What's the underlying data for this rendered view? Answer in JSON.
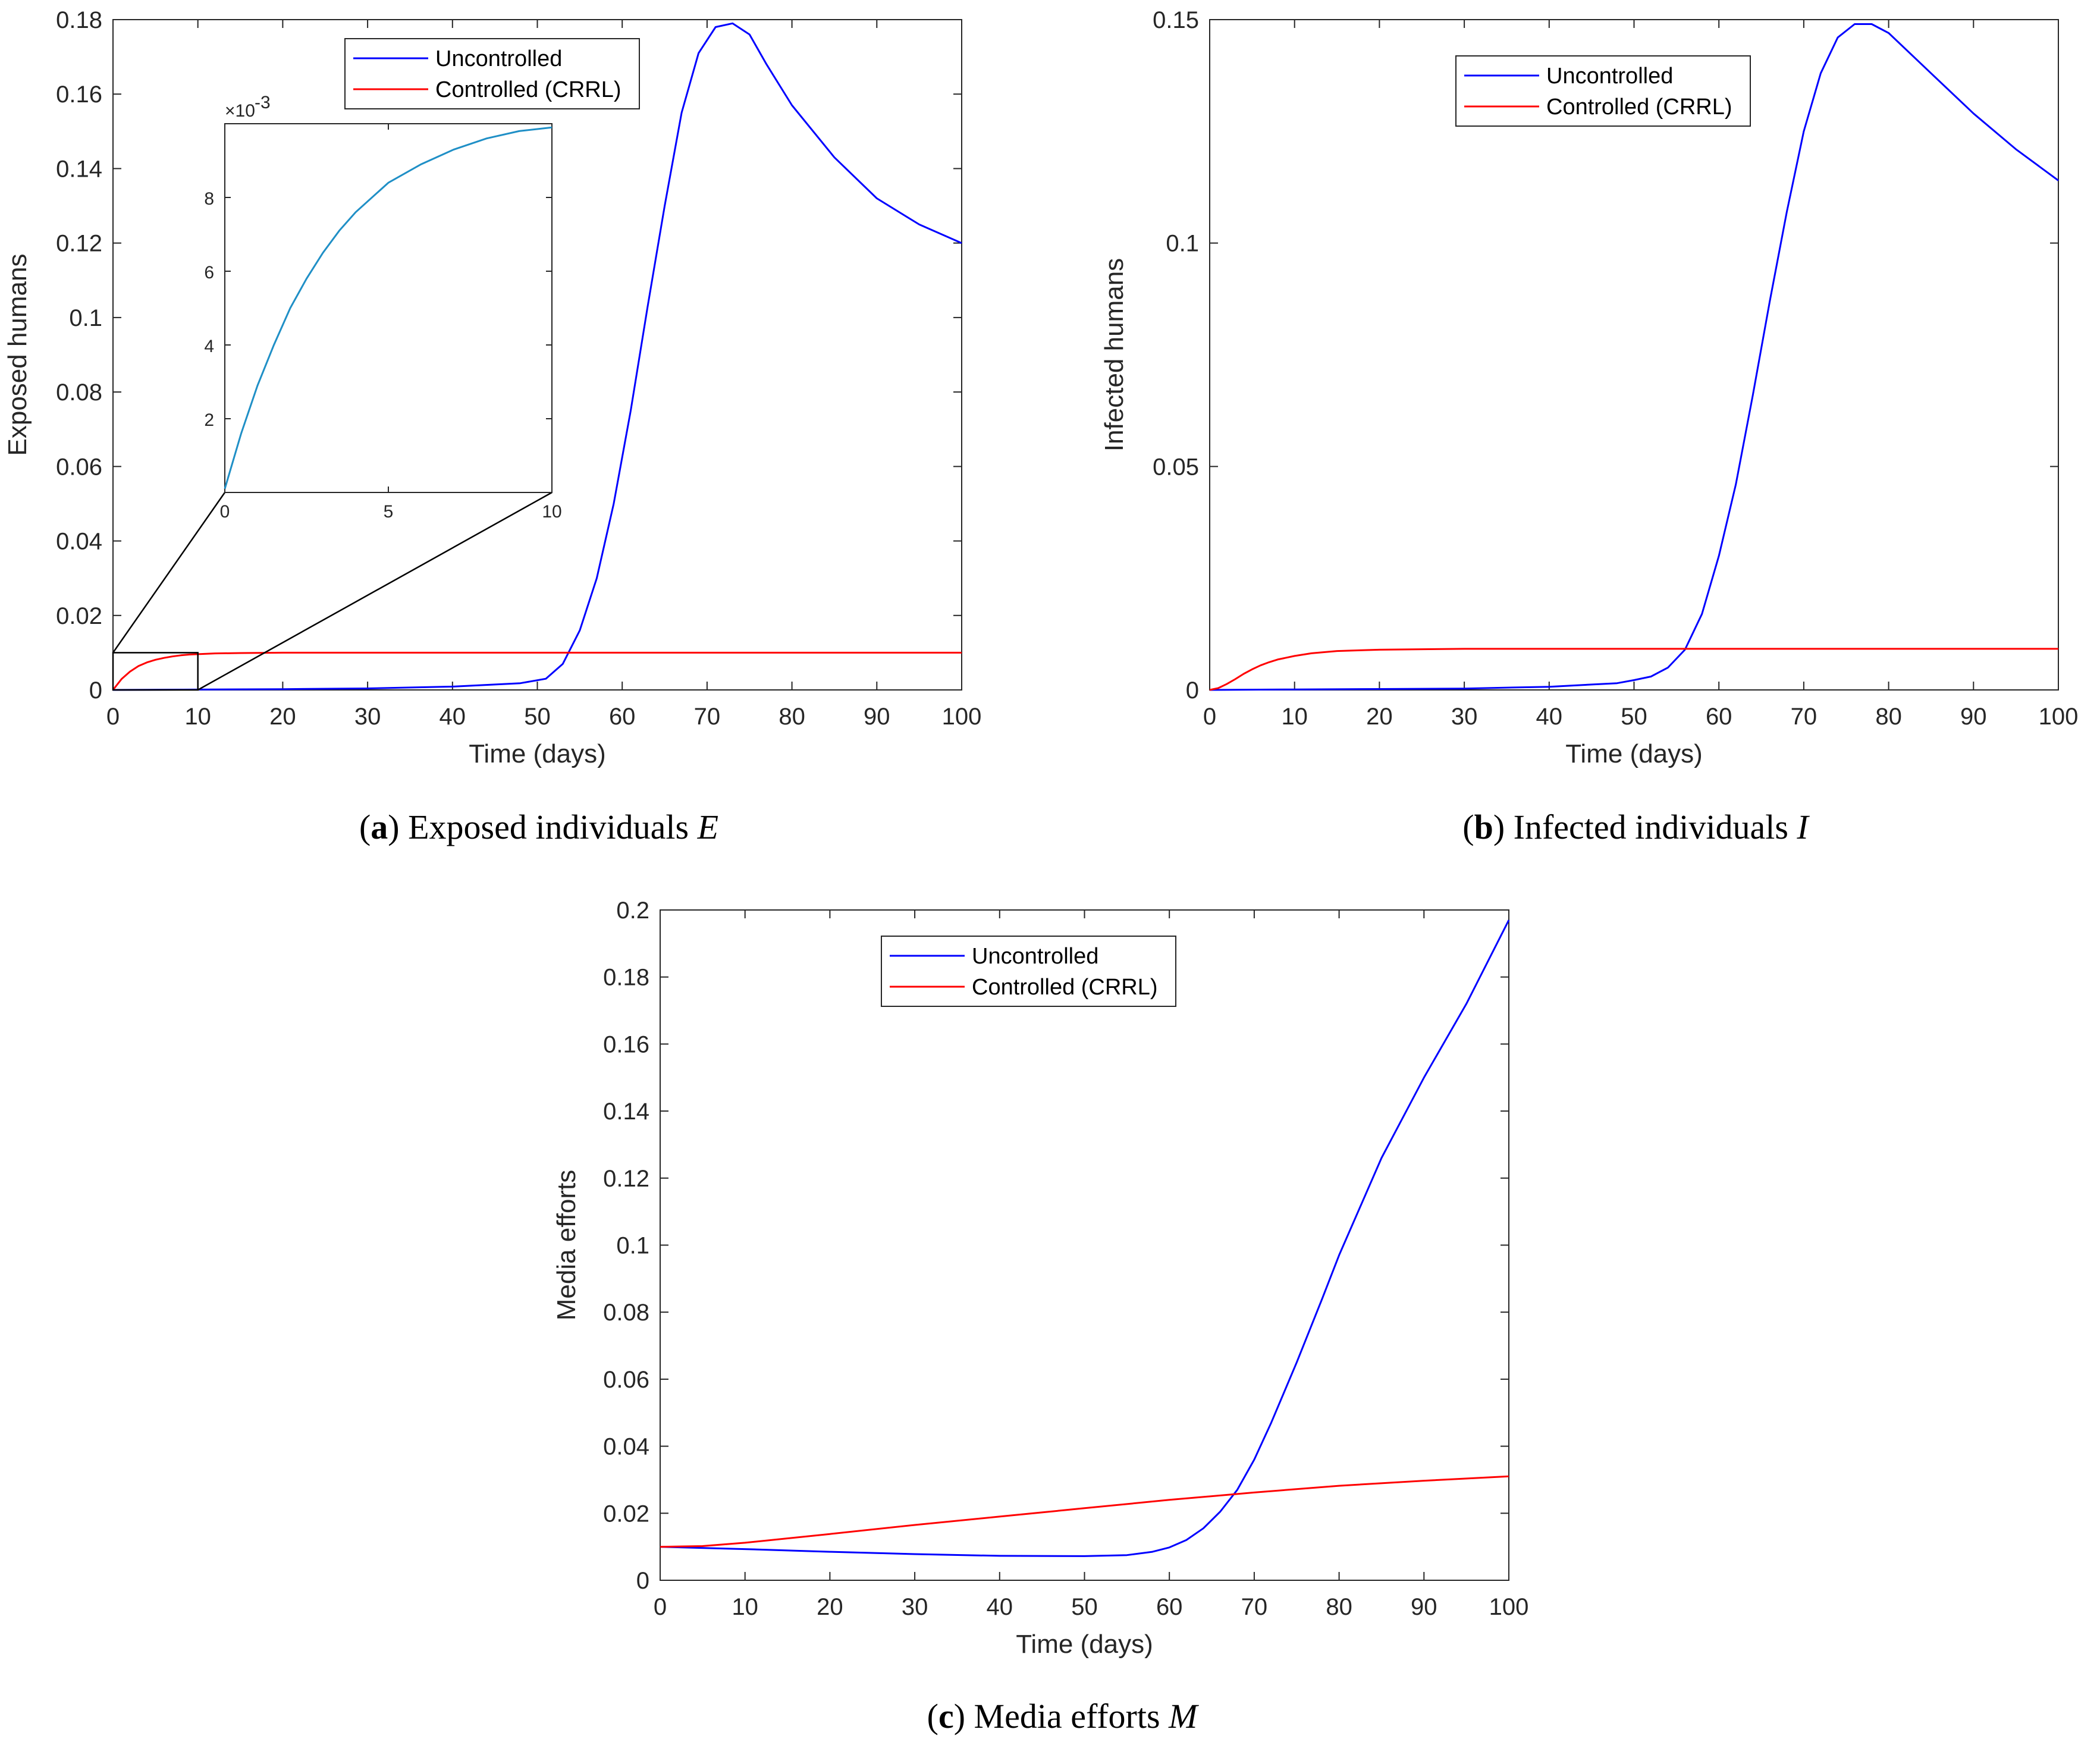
{
  "colors": {
    "uncontrolled": "#0000ff",
    "controlled": "#ff0000",
    "inset_line": "#1f8fc6",
    "axis": "#262626"
  },
  "chart_data": [
    {
      "id": "a",
      "type": "line",
      "xlabel": "Time (days)",
      "ylabel": "Exposed humans",
      "xlim": [
        0,
        100
      ],
      "ylim": [
        0,
        0.18
      ],
      "xticks": [
        0,
        10,
        20,
        30,
        40,
        50,
        60,
        70,
        80,
        90,
        100
      ],
      "xtick_labels": [
        "0",
        "10",
        "20",
        "30",
        "40",
        "50",
        "60",
        "70",
        "80",
        "90",
        "100"
      ],
      "yticks": [
        0,
        0.02,
        0.04,
        0.06,
        0.08,
        0.1,
        0.12,
        0.14,
        0.16,
        0.18
      ],
      "ytick_labels": [
        "0",
        "0.02",
        "0.04",
        "0.06",
        "0.08",
        "0.1",
        "0.12",
        "0.14",
        "0.16",
        "0.18"
      ],
      "legend": [
        "Uncontrolled",
        "Controlled (CRRL)"
      ],
      "legend_position": "top-center",
      "series": [
        {
          "name": "Uncontrolled",
          "color_key": "uncontrolled",
          "x": [
            0,
            10,
            20,
            30,
            40,
            48,
            51,
            53,
            55,
            57,
            59,
            61,
            63,
            65,
            67,
            69,
            71,
            73,
            75,
            77,
            80,
            85,
            90,
            95,
            100
          ],
          "y": [
            0,
            0.0001,
            0.0002,
            0.0004,
            0.0009,
            0.0018,
            0.003,
            0.007,
            0.016,
            0.03,
            0.05,
            0.075,
            0.103,
            0.13,
            0.155,
            0.171,
            0.178,
            0.179,
            0.176,
            0.168,
            0.157,
            0.143,
            0.132,
            0.125,
            0.12
          ]
        },
        {
          "name": "Controlled (CRRL)",
          "color_key": "controlled",
          "x": [
            0,
            1,
            2,
            3,
            4,
            5,
            6,
            7,
            8,
            9,
            10,
            12,
            15,
            20,
            30,
            50,
            100
          ],
          "y": [
            0,
            0.0029,
            0.0049,
            0.0064,
            0.0074,
            0.0081,
            0.0086,
            0.009,
            0.0093,
            0.0095,
            0.0096,
            0.0098,
            0.0099,
            0.01,
            0.01,
            0.01,
            0.01
          ]
        }
      ],
      "zoom_box": {
        "xlim": [
          0,
          10
        ],
        "ylim": [
          0,
          0.01
        ]
      },
      "inset": {
        "xlim": [
          0,
          10
        ],
        "ylim": [
          0,
          0.01
        ],
        "xticks": [
          0,
          5,
          10
        ],
        "xtick_labels": [
          "0",
          "5",
          "10"
        ],
        "yticks": [
          2,
          4,
          6,
          8
        ],
        "ytick_labels": [
          "2",
          "4",
          "6",
          "8"
        ],
        "exponent_label": "×10",
        "exponent_value": "-3",
        "series": {
          "color_key": "inset_line",
          "x": [
            0,
            0.5,
            1,
            1.5,
            2,
            2.5,
            3,
            3.5,
            4,
            5,
            6,
            7,
            8,
            9,
            10
          ],
          "y": [
            0.0001,
            0.0016,
            0.0029,
            0.004,
            0.005,
            0.0058,
            0.0065,
            0.0071,
            0.0076,
            0.0084,
            0.0089,
            0.0093,
            0.0096,
            0.0098,
            0.0099
          ]
        }
      },
      "caption": {
        "letter": "a",
        "text": "Exposed individuals",
        "var": "E"
      }
    },
    {
      "id": "b",
      "type": "line",
      "xlabel": "Time (days)",
      "ylabel": "Infected humans",
      "xlim": [
        0,
        100
      ],
      "ylim": [
        0,
        0.15
      ],
      "xticks": [
        0,
        10,
        20,
        30,
        40,
        50,
        60,
        70,
        80,
        90,
        100
      ],
      "xtick_labels": [
        "0",
        "10",
        "20",
        "30",
        "40",
        "50",
        "60",
        "70",
        "80",
        "90",
        "100"
      ],
      "yticks": [
        0,
        0.05,
        0.1,
        0.15
      ],
      "ytick_labels": [
        "0",
        "0.05",
        "0.1",
        "0.15"
      ],
      "legend": [
        "Uncontrolled",
        "Controlled (CRRL)"
      ],
      "legend_position": "top-center",
      "series": [
        {
          "name": "Uncontrolled",
          "color_key": "uncontrolled",
          "x": [
            0,
            10,
            20,
            30,
            40,
            48,
            50,
            52,
            54,
            56,
            58,
            60,
            62,
            64,
            66,
            68,
            70,
            72,
            74,
            76,
            78,
            80,
            85,
            90,
            95,
            100
          ],
          "y": [
            0,
            0.0001,
            0.0002,
            0.0003,
            0.0007,
            0.0015,
            0.0022,
            0.003,
            0.005,
            0.009,
            0.017,
            0.03,
            0.046,
            0.066,
            0.087,
            0.107,
            0.125,
            0.138,
            0.146,
            0.149,
            0.149,
            0.147,
            0.138,
            0.129,
            0.121,
            0.114
          ]
        },
        {
          "name": "Controlled (CRRL)",
          "color_key": "controlled",
          "x": [
            0,
            1,
            2,
            3,
            4,
            5,
            6,
            7,
            8,
            10,
            12,
            15,
            20,
            30,
            50,
            100
          ],
          "y": [
            0,
            0.0004,
            0.0013,
            0.0024,
            0.0036,
            0.0046,
            0.0055,
            0.0062,
            0.0068,
            0.0076,
            0.0082,
            0.0087,
            0.009,
            0.0092,
            0.0092,
            0.0092
          ]
        }
      ],
      "caption": {
        "letter": "b",
        "text": "Infected individuals",
        "var": "I"
      }
    },
    {
      "id": "c",
      "type": "line",
      "xlabel": "Time (days)",
      "ylabel": "Media efforts",
      "xlim": [
        0,
        100
      ],
      "ylim": [
        0,
        0.2
      ],
      "xticks": [
        0,
        10,
        20,
        30,
        40,
        50,
        60,
        70,
        80,
        90,
        100
      ],
      "xtick_labels": [
        "0",
        "10",
        "20",
        "30",
        "40",
        "50",
        "60",
        "70",
        "80",
        "90",
        "100"
      ],
      "yticks": [
        0,
        0.02,
        0.04,
        0.06,
        0.08,
        0.1,
        0.12,
        0.14,
        0.16,
        0.18,
        0.2
      ],
      "ytick_labels": [
        "0",
        "0.02",
        "0.04",
        "0.06",
        "0.08",
        "0.1",
        "0.12",
        "0.14",
        "0.16",
        "0.18",
        "0.2"
      ],
      "legend": [
        "Uncontrolled",
        "Controlled (CRRL)"
      ],
      "legend_position": "top-center",
      "series": [
        {
          "name": "Uncontrolled",
          "color_key": "uncontrolled",
          "x": [
            0,
            10,
            20,
            30,
            40,
            50,
            55,
            58,
            60,
            62,
            64,
            66,
            68,
            70,
            72,
            75,
            78,
            80,
            85,
            90,
            95,
            100
          ],
          "y": [
            0.01,
            0.0093,
            0.0085,
            0.0078,
            0.0073,
            0.0072,
            0.0075,
            0.0085,
            0.0098,
            0.012,
            0.0155,
            0.0205,
            0.027,
            0.036,
            0.047,
            0.065,
            0.084,
            0.097,
            0.126,
            0.15,
            0.172,
            0.197
          ]
        },
        {
          "name": "Controlled (CRRL)",
          "color_key": "controlled",
          "x": [
            0,
            5,
            10,
            20,
            30,
            40,
            50,
            60,
            70,
            80,
            90,
            100
          ],
          "y": [
            0.01,
            0.0102,
            0.0112,
            0.0138,
            0.0165,
            0.019,
            0.0215,
            0.024,
            0.0262,
            0.0282,
            0.0297,
            0.031
          ]
        }
      ],
      "caption": {
        "letter": "c",
        "text": "Media efforts",
        "var": "M"
      }
    }
  ]
}
